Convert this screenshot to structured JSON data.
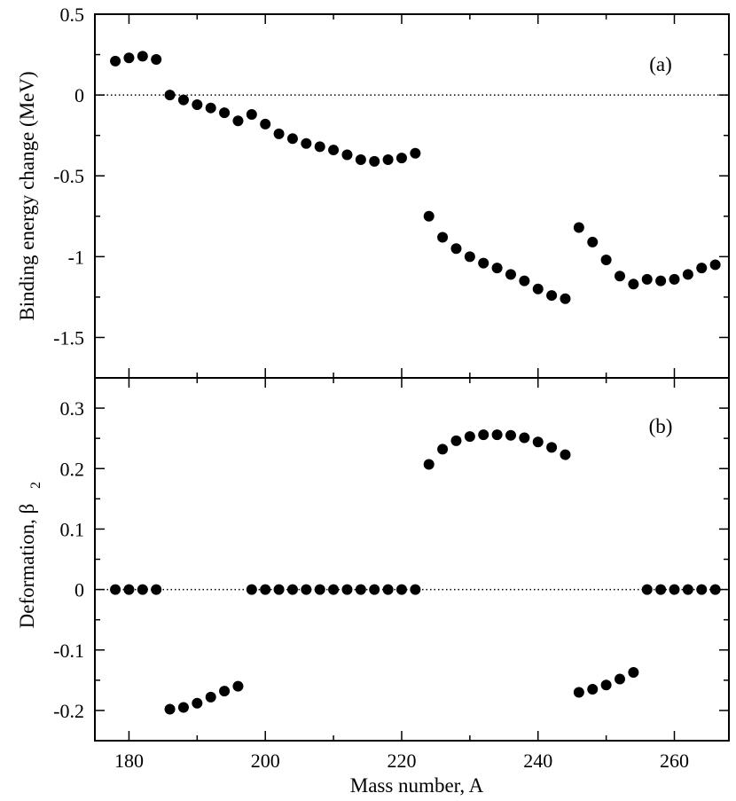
{
  "chart_data": [
    {
      "panel": "a",
      "type": "scatter",
      "tag": "(a)",
      "ylabel": "Binding energy change (MeV)",
      "xlabel": "",
      "xlim": [
        175,
        268
      ],
      "ylim": [
        -1.75,
        0.5
      ],
      "xticks": [
        180,
        200,
        220,
        240,
        260
      ],
      "xticklabels": [
        "",
        "",
        "",
        "",
        ""
      ],
      "yticks": [
        0.5,
        0,
        -0.5,
        -1,
        -1.5
      ],
      "yticklabels": [
        "0.5",
        "0",
        "-0.5",
        "-1",
        "-1.5"
      ],
      "reference_line": 0,
      "x": [
        178,
        180,
        182,
        184,
        186,
        188,
        190,
        192,
        194,
        196,
        198,
        200,
        202,
        204,
        206,
        208,
        210,
        212,
        214,
        216,
        218,
        220,
        222,
        224,
        226,
        228,
        230,
        232,
        234,
        236,
        238,
        240,
        242,
        244,
        246,
        248,
        250,
        252,
        254,
        256,
        258,
        260,
        262,
        264,
        266
      ],
      "y": [
        0.21,
        0.23,
        0.24,
        0.22,
        0.0,
        -0.03,
        -0.06,
        -0.08,
        -0.11,
        -0.16,
        -0.12,
        -0.18,
        -0.24,
        -0.27,
        -0.3,
        -0.32,
        -0.34,
        -0.37,
        -0.4,
        -0.41,
        -0.4,
        -0.39,
        -0.36,
        -0.75,
        -0.88,
        -0.95,
        -1.0,
        -1.04,
        -1.07,
        -1.11,
        -1.15,
        -1.2,
        -1.24,
        -1.26,
        -0.82,
        -0.91,
        -1.02,
        -1.12,
        -1.17,
        -1.14,
        -1.15,
        -1.14,
        -1.11,
        -1.07,
        -1.05
      ]
    },
    {
      "panel": "b",
      "type": "scatter",
      "tag": "(b)",
      "ylabel_main": "Deformation, β",
      "ylabel_sub": "2",
      "xlabel": "Mass number, A",
      "xlim": [
        175,
        268
      ],
      "ylim": [
        -0.25,
        0.35
      ],
      "xticks": [
        180,
        200,
        220,
        240,
        260
      ],
      "xticklabels": [
        "180",
        "200",
        "220",
        "240",
        "260"
      ],
      "yticks": [
        0.3,
        0.2,
        0.1,
        0,
        -0.1,
        -0.2
      ],
      "yticklabels": [
        "0.3",
        "0.2",
        "0.1",
        "0",
        "-0.1",
        "-0.2"
      ],
      "reference_line": 0,
      "x": [
        178,
        180,
        182,
        184,
        186,
        188,
        190,
        192,
        194,
        196,
        198,
        200,
        202,
        204,
        206,
        208,
        210,
        212,
        214,
        216,
        218,
        220,
        222,
        224,
        226,
        228,
        230,
        232,
        234,
        236,
        238,
        240,
        242,
        244,
        246,
        248,
        250,
        252,
        254,
        256,
        258,
        260,
        262,
        264,
        266
      ],
      "y": [
        0,
        0,
        0,
        0,
        -0.198,
        -0.195,
        -0.188,
        -0.178,
        -0.168,
        -0.16,
        0,
        0,
        0,
        0,
        0,
        0,
        0,
        0,
        0,
        0,
        0,
        0,
        0,
        0.207,
        0.232,
        0.246,
        0.253,
        0.256,
        0.256,
        0.255,
        0.251,
        0.244,
        0.235,
        0.223,
        -0.17,
        -0.165,
        -0.158,
        -0.148,
        -0.137,
        0,
        0,
        0,
        0,
        0,
        0
      ]
    }
  ]
}
